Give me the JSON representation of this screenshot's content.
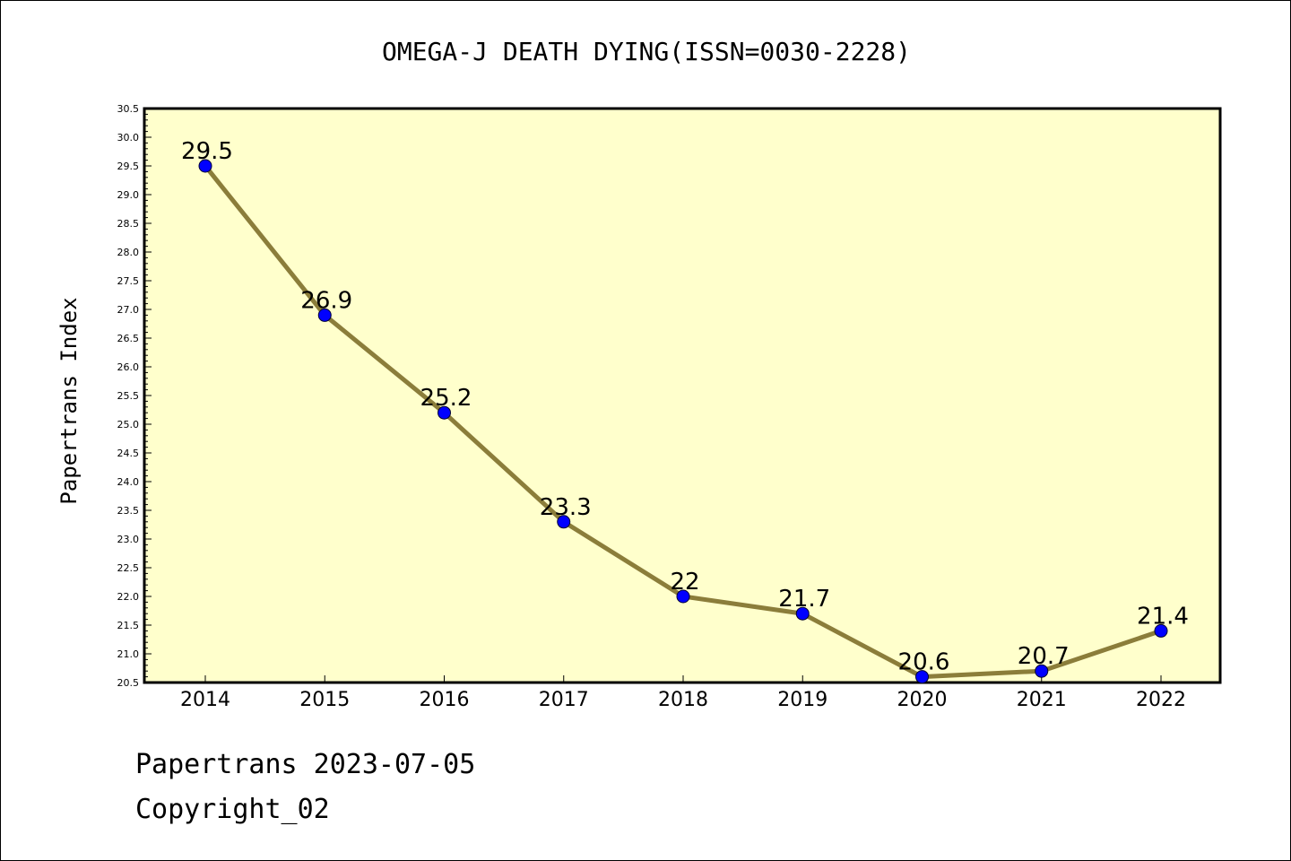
{
  "footer": {
    "line1": "Papertrans 2023-07-05",
    "line2": "Copyright_02"
  },
  "chart_data": {
    "type": "line",
    "title": "OMEGA-J DEATH DYING(ISSN=0030-2228)",
    "xlabel": "",
    "ylabel": "Papertrans Index",
    "categories": [
      "2014",
      "2015",
      "2016",
      "2017",
      "2018",
      "2019",
      "2020",
      "2021",
      "2022"
    ],
    "values": [
      29.5,
      26.9,
      25.2,
      23.3,
      22,
      21.7,
      20.6,
      20.7,
      21.4
    ],
    "data_labels": [
      "29.5",
      "26.9",
      "25.2",
      "23.3",
      "22",
      "21.7",
      "20.6",
      "20.7",
      "21.4"
    ],
    "ylim": [
      20.5,
      30.5
    ],
    "yticks": [
      "20.5",
      "21.0",
      "21.5",
      "22.0",
      "22.5",
      "23.0",
      "23.5",
      "24.0",
      "24.5",
      "25.0",
      "25.5",
      "26.0",
      "26.5",
      "27.0",
      "27.5",
      "28.0",
      "28.5",
      "29.0",
      "29.5",
      "30.0",
      "30.5"
    ],
    "grid": false,
    "colors": {
      "plot_background": "#ffffcc",
      "line": "#8b7d3a",
      "marker": "#0000ff"
    }
  }
}
